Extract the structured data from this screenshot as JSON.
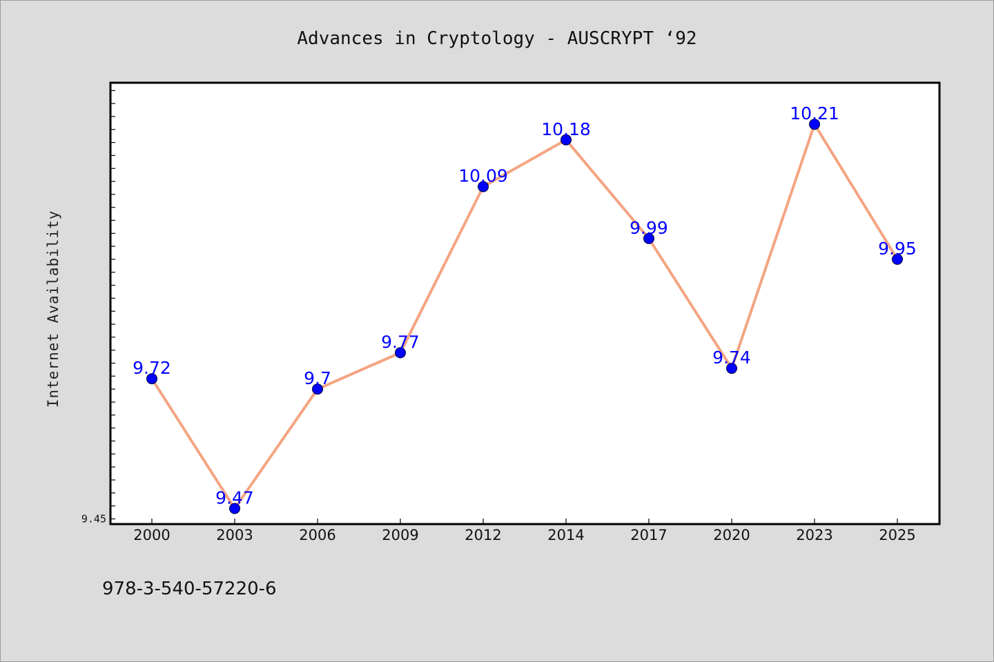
{
  "chart_data": {
    "type": "line",
    "title": "Advances in Cryptology - AUSCRYPT  ‘92",
    "xlabel": "",
    "ylabel": "Internet Availability",
    "categories": [
      "2000",
      "2003",
      "2006",
      "2009",
      "2012",
      "2014",
      "2017",
      "2020",
      "2023",
      "2025"
    ],
    "series": [
      {
        "values": [
          9.72,
          9.47,
          9.7,
          9.77,
          10.09,
          10.18,
          9.99,
          9.74,
          10.21,
          9.95
        ]
      }
    ],
    "ylim": [
      9.44,
      10.29
    ],
    "ytick_labels": [
      "9.45"
    ],
    "data_labels": [
      "9.72",
      "9.47",
      "9.7",
      "9.77",
      "10.09",
      "10.18",
      "9.99",
      "9.74",
      "10.21",
      "9.95"
    ],
    "grid": false,
    "line_color": "#f4a582",
    "marker_color": "#0000ff",
    "label_color": "#0000ff",
    "background": "#dcdcdc",
    "plot_background": "#ffffff"
  },
  "footer": {
    "isbn": "978-3-540-57220-6"
  }
}
